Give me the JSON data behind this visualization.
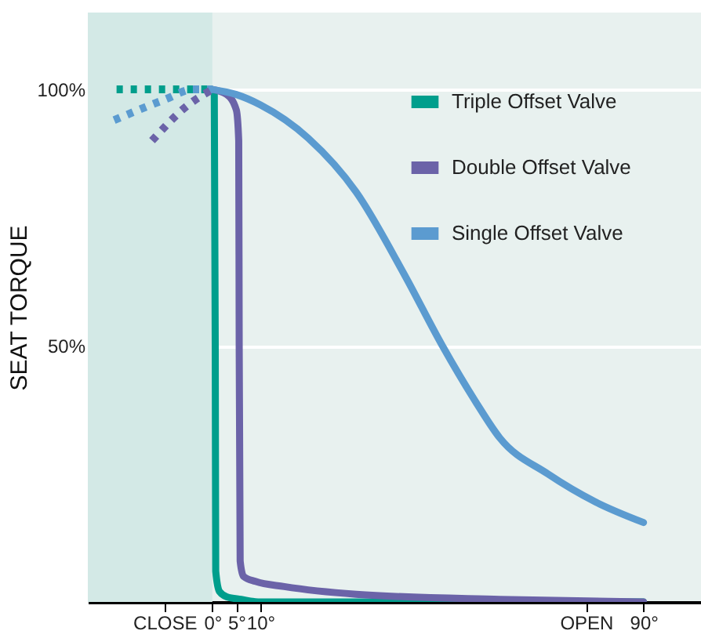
{
  "chart_data": {
    "type": "line",
    "ylabel": "SEAT TORQUE",
    "xlim": [
      -26,
      102
    ],
    "ylim": [
      0,
      115
    ],
    "xticks": [
      {
        "value": -10,
        "label": "CLOSE"
      },
      {
        "value": 0,
        "label": "0°"
      },
      {
        "value": 5,
        "label": "5°"
      },
      {
        "value": 10,
        "label": "10°"
      },
      {
        "value": 78,
        "label": "OPEN"
      },
      {
        "value": 90,
        "label": "90°"
      }
    ],
    "yticks": [
      {
        "value": 50,
        "label": "50%"
      },
      {
        "value": 100,
        "label": "100%"
      }
    ],
    "grid": "y",
    "legend": "top right",
    "line_style": "solid",
    "bands": [
      {
        "axis": "x",
        "from": -26,
        "to": 0,
        "color": "#d3e9e6"
      }
    ],
    "series": [
      {
        "name": "Triple Offset Valve",
        "color": "#009e8c",
        "x": [
          0,
          0.4,
          0.6,
          0.7,
          1.5,
          3,
          6,
          10,
          90
        ],
        "values": [
          100,
          99,
          50,
          6,
          2,
          1,
          0.5,
          0,
          0
        ]
      },
      {
        "name": "Double Offset Valve",
        "color": "#6b63a8",
        "x": [
          0,
          3,
          5,
          5.5,
          5.6,
          5.8,
          6.5,
          9,
          15,
          30,
          60,
          90
        ],
        "values": [
          100,
          99,
          96,
          90,
          50,
          8,
          5,
          4,
          3,
          1.5,
          0.5,
          0
        ]
      },
      {
        "name": "Single Offset Valve",
        "color": "#5b9bd0",
        "x": [
          0,
          5,
          10,
          20,
          30,
          40,
          48,
          55,
          60,
          70,
          80,
          90
        ],
        "values": [
          100,
          99,
          97,
          90.5,
          80,
          64,
          50,
          39,
          32,
          25,
          19.5,
          15.5
        ]
      },
      {
        "color": "#009e8c",
        "line_style": "dotted",
        "x": [
          -20,
          -10,
          0
        ],
        "values": [
          100,
          100,
          100
        ]
      },
      {
        "color": "#5b9bd0",
        "line_style": "dotted",
        "x": [
          -20.5,
          -10,
          -4,
          0
        ],
        "values": [
          94,
          98,
          100,
          100
        ]
      },
      {
        "color": "#6b63a8",
        "line_style": "dotted",
        "x": [
          -12.6,
          -5,
          0
        ],
        "values": [
          90,
          97,
          100
        ]
      }
    ]
  }
}
